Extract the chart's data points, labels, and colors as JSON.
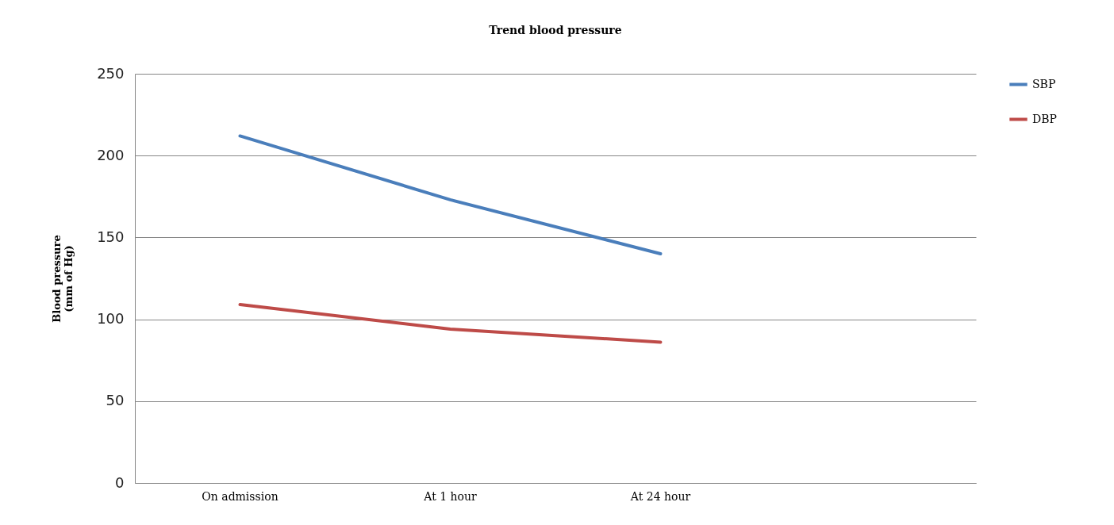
{
  "chart_data": {
    "type": "line",
    "title": "Trend blood pressure",
    "ylabel": "Blood pressure\n(mm of Hg)",
    "categories": [
      "On admission",
      "At 1 hour",
      "At 24 hour",
      null
    ],
    "series": [
      {
        "name": "SBP",
        "color": "#4a7ebb",
        "values": [
          212,
          173,
          140,
          null
        ]
      },
      {
        "name": "DBP",
        "color": "#be4b48",
        "values": [
          109,
          94,
          86,
          null
        ]
      }
    ],
    "ylim": [
      0,
      250
    ],
    "yticks": [
      0,
      50,
      100,
      150,
      200,
      250
    ],
    "grid": "y",
    "legend": "right",
    "marker": "none",
    "line_style": "solid"
  }
}
